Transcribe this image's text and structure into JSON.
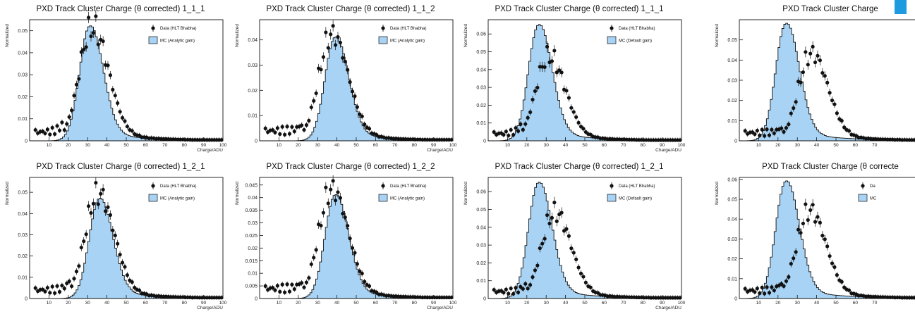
{
  "figure": {
    "accent_color": "#1e9be0"
  },
  "chart_data": [
    {
      "type": "bar",
      "title": "PXD Track Cluster Charge (θ corrected) 1_1_1",
      "xlabel": "Charge/ADU",
      "ylabel": "Normalized",
      "xlim": [
        0,
        100
      ],
      "ylim": [
        0,
        0.055
      ],
      "xticks": [
        10,
        20,
        30,
        40,
        50,
        60,
        70,
        80,
        90,
        100
      ],
      "yticks": [
        0,
        0.01,
        0.02,
        0.03,
        0.04,
        0.05
      ],
      "ytick_labels": [
        "0",
        "0.01",
        "0.02",
        "0.03",
        "0.04",
        "0.05"
      ],
      "legend": [
        "Data (HLT Bhabha)",
        "MC (Analytic gain)"
      ],
      "series": [
        {
          "name": "Data (HLT Bhabha)",
          "kind": "points",
          "peak": 32,
          "height": 0.051
        },
        {
          "name": "MC (Analytic gain)",
          "kind": "histogram",
          "peak": 31,
          "height": 0.052
        }
      ]
    },
    {
      "type": "bar",
      "title": "PXD Track Cluster Charge (θ corrected) 1_1_2",
      "xlabel": "Charge/ADU",
      "ylabel": "Normalized",
      "xlim": [
        0,
        100
      ],
      "ylim": [
        0,
        0.048
      ],
      "xticks": [
        10,
        20,
        30,
        40,
        50,
        60,
        70,
        80,
        90,
        100
      ],
      "yticks": [
        0,
        0.01,
        0.02,
        0.03,
        0.04
      ],
      "ytick_labels": [
        "0",
        "0.01",
        "0.02",
        "0.03",
        "0.04"
      ],
      "legend": [
        "Data (HLT Bhabha)",
        "MC (Analytic gain)"
      ],
      "series": [
        {
          "name": "Data (HLT Bhabha)",
          "kind": "points",
          "peak": 37,
          "height": 0.042
        },
        {
          "name": "MC (Analytic gain)",
          "kind": "histogram",
          "peak": 39,
          "height": 0.041
        }
      ]
    },
    {
      "type": "bar",
      "title": "PXD Track Cluster Charge (θ corrected) 1_1_1",
      "xlabel": "Charge/ADU",
      "ylabel": "Normalized",
      "xlim": [
        0,
        100
      ],
      "ylim": [
        0,
        0.068
      ],
      "xticks": [
        10,
        20,
        30,
        40,
        50,
        60,
        70,
        80,
        90,
        100
      ],
      "yticks": [
        0,
        0.01,
        0.02,
        0.03,
        0.04,
        0.05,
        0.06
      ],
      "ytick_labels": [
        "0",
        "0.01",
        "0.02",
        "0.03",
        "0.04",
        "0.05",
        "0.06"
      ],
      "legend": [
        "Data (HLT Bhabha)",
        "MC (Default gain)"
      ],
      "series": [
        {
          "name": "Data (HLT Bhabha)",
          "kind": "points",
          "peak": 31,
          "height": 0.047
        },
        {
          "name": "MC (Default gain)",
          "kind": "histogram",
          "peak": 26,
          "height": 0.065
        }
      ]
    },
    {
      "type": "bar",
      "title": "PXD Track Cluster Charge",
      "xlabel": "",
      "ylabel": "Normalized",
      "xlim": [
        0,
        100
      ],
      "ylim": [
        0,
        0.06
      ],
      "xticks": [
        10,
        20,
        30,
        40,
        50,
        60,
        70
      ],
      "yticks": [
        0,
        0.01,
        0.02,
        0.03,
        0.04,
        0.05
      ],
      "ytick_labels": [
        "0",
        "0.01",
        "0.02",
        "0.03",
        "0.04",
        "0.05"
      ],
      "legend": [],
      "series": [
        {
          "name": "",
          "kind": "points",
          "peak": 37,
          "height": 0.043
        },
        {
          "name": "",
          "kind": "histogram",
          "peak": 24,
          "height": 0.058
        }
      ]
    },
    {
      "type": "bar",
      "title": "PXD Track Cluster Charge (θ corrected) 1_2_1",
      "xlabel": "Charge/ADU",
      "ylabel": "Normalized",
      "xlim": [
        0,
        100
      ],
      "ylim": [
        0,
        0.057
      ],
      "xticks": [
        10,
        20,
        30,
        40,
        50,
        60,
        70,
        80,
        90,
        100
      ],
      "yticks": [
        0,
        0.01,
        0.02,
        0.03,
        0.04,
        0.05
      ],
      "ytick_labels": [
        "0",
        "0.01",
        "0.02",
        "0.03",
        "0.04",
        "0.05"
      ],
      "legend": [
        "Data (HLT Bhabha)",
        "MC (Analytic gain)"
      ],
      "series": [
        {
          "name": "Data (HLT Bhabha)",
          "kind": "points",
          "peak": 35,
          "height": 0.049
        },
        {
          "name": "MC (Analytic gain)",
          "kind": "histogram",
          "peak": 36,
          "height": 0.047
        }
      ]
    },
    {
      "type": "bar",
      "title": "PXD Track Cluster Charge (θ corrected) 1_2_2",
      "xlabel": "Charge/ADU",
      "ylabel": "Normalized",
      "xlim": [
        0,
        100
      ],
      "ylim": [
        0,
        0.048
      ],
      "xticks": [
        10,
        20,
        30,
        40,
        50,
        60,
        70,
        80,
        90,
        100
      ],
      "yticks": [
        0,
        0.005,
        0.01,
        0.015,
        0.02,
        0.025,
        0.03,
        0.035,
        0.04,
        0.045
      ],
      "ytick_labels": [
        "0",
        "0.005",
        "0.01",
        "0.015",
        "0.02",
        "0.025",
        "0.03",
        "0.035",
        "0.04",
        "0.045"
      ],
      "legend": [
        "Data (HLT Bhabha)",
        "MC (Analytic gain)"
      ],
      "series": [
        {
          "name": "Data (HLT Bhabha)",
          "kind": "points",
          "peak": 37,
          "height": 0.043
        },
        {
          "name": "MC (Analytic gain)",
          "kind": "histogram",
          "peak": 39,
          "height": 0.041
        }
      ]
    },
    {
      "type": "bar",
      "title": "PXD Track Cluster Charge (θ corrected) 1_2_1",
      "xlabel": "Charge/ADU",
      "ylabel": "Normalized",
      "xlim": [
        0,
        100
      ],
      "ylim": [
        0,
        0.068
      ],
      "xticks": [
        10,
        20,
        30,
        40,
        50,
        60,
        70,
        80,
        90,
        100
      ],
      "yticks": [
        0,
        0.01,
        0.02,
        0.03,
        0.04,
        0.05,
        0.06
      ],
      "ytick_labels": [
        "0",
        "0.01",
        "0.02",
        "0.03",
        "0.04",
        "0.05",
        "0.06"
      ],
      "legend": [
        "Data (HLT Bhabha)",
        "MC (Default gain)"
      ],
      "series": [
        {
          "name": "Data (HLT Bhabha)",
          "kind": "points",
          "peak": 34,
          "height": 0.048
        },
        {
          "name": "MC (Default gain)",
          "kind": "histogram",
          "peak": 26,
          "height": 0.065
        }
      ]
    },
    {
      "type": "bar",
      "title": "PXD Track Cluster Charge (θ correcte",
      "xlabel": "",
      "ylabel": "Normalized",
      "xlim": [
        0,
        100
      ],
      "ylim": [
        0,
        0.061
      ],
      "xticks": [
        10,
        20,
        30,
        40,
        50,
        60,
        70
      ],
      "yticks": [
        0,
        0.01,
        0.02,
        0.03,
        0.04,
        0.05,
        0.06
      ],
      "ytick_labels": [
        "0",
        "0.01",
        "0.02",
        "0.03",
        "0.04",
        "0.05",
        "0.06"
      ],
      "legend": [
        "Da",
        "MC"
      ],
      "series": [
        {
          "name": "Da",
          "kind": "points",
          "peak": 36,
          "height": 0.044
        },
        {
          "name": "MC",
          "kind": "histogram",
          "peak": 24,
          "height": 0.059
        }
      ]
    }
  ]
}
